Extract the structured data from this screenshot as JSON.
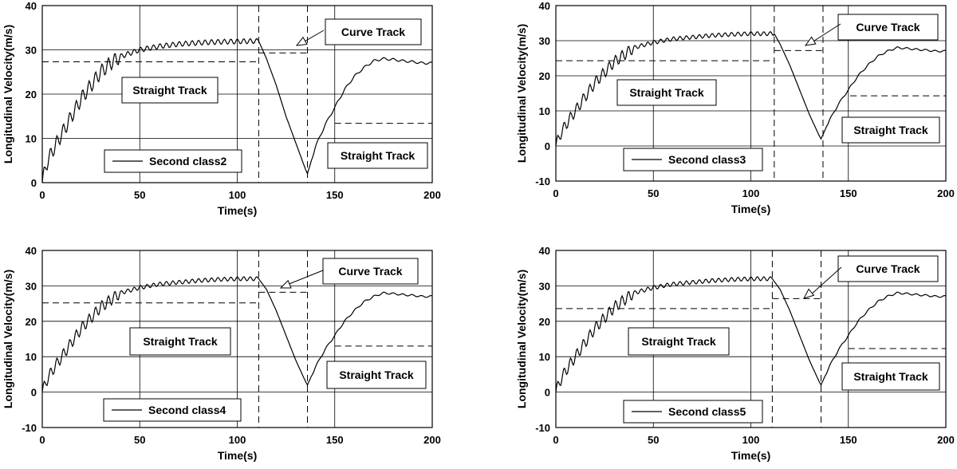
{
  "figure": {
    "subplots": [
      {
        "legend_label": "Second class2",
        "ylim": [
          0,
          40
        ],
        "yticks": [
          0,
          10,
          20,
          30,
          40
        ],
        "dashed": {
          "split_x": 111,
          "curve_end_x": 136,
          "straight1_y": 27.3,
          "curve_y": 29.3,
          "straight2_y": 13.4
        },
        "annotations": {
          "curve_track": "Curve Track",
          "straight_track_1": "Straight Track",
          "straight_track_2": "Straight Track"
        }
      },
      {
        "legend_label": "Second class3",
        "ylim": [
          -10,
          40
        ],
        "yticks": [
          -10,
          0,
          10,
          20,
          30,
          40
        ],
        "dashed": {
          "split_x": 112,
          "curve_end_x": 137,
          "straight1_y": 24.3,
          "curve_y": 27.2,
          "straight2_y": 14.3
        },
        "annotations": {
          "curve_track": "Curve Track",
          "straight_track_1": "Straight Track",
          "straight_track_2": "Straight Track"
        }
      },
      {
        "legend_label": "Second class4",
        "ylim": [
          -10,
          40
        ],
        "yticks": [
          -10,
          0,
          10,
          20,
          30,
          40
        ],
        "dashed": {
          "split_x": 111,
          "curve_end_x": 136,
          "straight1_y": 25.2,
          "curve_y": 28.2,
          "straight2_y": 13.0
        },
        "annotations": {
          "curve_track": "Curve Track",
          "straight_track_1": "Straight Track",
          "straight_track_2": "Straight Track"
        }
      },
      {
        "legend_label": "Second class5",
        "ylim": [
          -10,
          40
        ],
        "yticks": [
          -10,
          0,
          10,
          20,
          30,
          40
        ],
        "dashed": {
          "split_x": 111,
          "curve_end_x": 136,
          "straight1_y": 23.6,
          "curve_y": 26.4,
          "straight2_y": 12.3
        },
        "annotations": {
          "curve_track": "Curve Track",
          "straight_track_1": "Straight Track",
          "straight_track_2": "Straight Track"
        }
      }
    ]
  },
  "chart_data": [
    {
      "type": "line",
      "xlabel": "Time(s)",
      "ylabel": "Longitudinal Velocity(m/s)",
      "xlim": [
        0,
        200
      ],
      "ylim": [
        0,
        40
      ],
      "xticks": [
        0,
        50,
        100,
        150,
        200
      ],
      "grid": true,
      "legend_position": "bottom-left",
      "series": [
        {
          "name": "Second class2",
          "x": [
            0,
            2,
            5,
            10,
            15,
            20,
            25,
            30,
            35,
            40,
            50,
            60,
            70,
            80,
            90,
            100,
            111,
            115,
            120,
            125,
            130,
            135,
            136,
            140,
            145,
            150,
            155,
            160,
            165,
            170,
            175,
            180,
            185,
            190,
            195,
            200
          ],
          "y": [
            0,
            4,
            7,
            11,
            15,
            19,
            22,
            25,
            27,
            28.5,
            30,
            30.8,
            31.3,
            31.6,
            31.8,
            31.9,
            32,
            28,
            22,
            15,
            9,
            3,
            2,
            8,
            13,
            17,
            21,
            24,
            26,
            27.5,
            28,
            27.8,
            27.5,
            27.3,
            27,
            27
          ]
        }
      ]
    },
    {
      "type": "line",
      "xlabel": "Time(s)",
      "ylabel": "Longitudinal Velocity(m/s)",
      "xlim": [
        0,
        200
      ],
      "ylim": [
        -10,
        40
      ],
      "xticks": [
        0,
        50,
        100,
        150,
        200
      ],
      "grid": true,
      "legend_position": "bottom-left",
      "series": [
        {
          "name": "Second class3",
          "x": [
            0,
            2,
            5,
            10,
            15,
            20,
            25,
            30,
            35,
            40,
            50,
            60,
            70,
            80,
            90,
            100,
            112,
            115,
            120,
            125,
            130,
            135,
            136,
            140,
            145,
            150,
            155,
            160,
            165,
            170,
            175,
            180,
            185,
            190,
            195,
            200
          ],
          "y": [
            0,
            3,
            6,
            10,
            14,
            18,
            21,
            24,
            26,
            28,
            29.5,
            30.5,
            31,
            31.5,
            31.8,
            32,
            32,
            29,
            23,
            16,
            9,
            3,
            2,
            7,
            12,
            16,
            20,
            23,
            25.5,
            27,
            28,
            27.8,
            27.5,
            27.3,
            27,
            27
          ]
        }
      ]
    },
    {
      "type": "line",
      "xlabel": "Time(s)",
      "ylabel": "Longitudinal Velocity(m/s)",
      "xlim": [
        0,
        200
      ],
      "ylim": [
        -10,
        40
      ],
      "xticks": [
        0,
        50,
        100,
        150,
        200
      ],
      "grid": true,
      "legend_position": "bottom-left",
      "series": [
        {
          "name": "Second class4",
          "x": [
            0,
            2,
            5,
            10,
            15,
            20,
            25,
            30,
            35,
            40,
            50,
            60,
            70,
            80,
            90,
            100,
            111,
            115,
            120,
            125,
            130,
            135,
            136,
            140,
            145,
            150,
            155,
            160,
            165,
            170,
            175,
            180,
            185,
            190,
            195,
            200
          ],
          "y": [
            0,
            3,
            6,
            10,
            14,
            18,
            21,
            24,
            26,
            28,
            29.5,
            30.5,
            31,
            31.5,
            31.8,
            32,
            32,
            29,
            23,
            16,
            9,
            3,
            2,
            7,
            12,
            16,
            20,
            23,
            25.5,
            27,
            28,
            27.8,
            27.5,
            27.3,
            27,
            27
          ]
        }
      ]
    },
    {
      "type": "line",
      "xlabel": "Time(s)",
      "ylabel": "Longitudinal Velocity(m/s)",
      "xlim": [
        0,
        200
      ],
      "ylim": [
        -10,
        40
      ],
      "xticks": [
        0,
        50,
        100,
        150,
        200
      ],
      "grid": true,
      "legend_position": "bottom-left",
      "series": [
        {
          "name": "Second class5",
          "x": [
            0,
            2,
            5,
            10,
            15,
            20,
            25,
            30,
            35,
            40,
            50,
            60,
            70,
            80,
            90,
            100,
            111,
            115,
            120,
            125,
            130,
            135,
            136,
            140,
            145,
            150,
            155,
            160,
            165,
            170,
            175,
            180,
            185,
            190,
            195,
            200
          ],
          "y": [
            0,
            3,
            6,
            10,
            14,
            18,
            21,
            24,
            26,
            28,
            29.5,
            30.5,
            31,
            31.5,
            31.8,
            32,
            32,
            29,
            23,
            16,
            9,
            3,
            2,
            7,
            12,
            16,
            20,
            23,
            25.5,
            27,
            28,
            27.8,
            27.5,
            27.3,
            27,
            27
          ]
        }
      ]
    }
  ]
}
